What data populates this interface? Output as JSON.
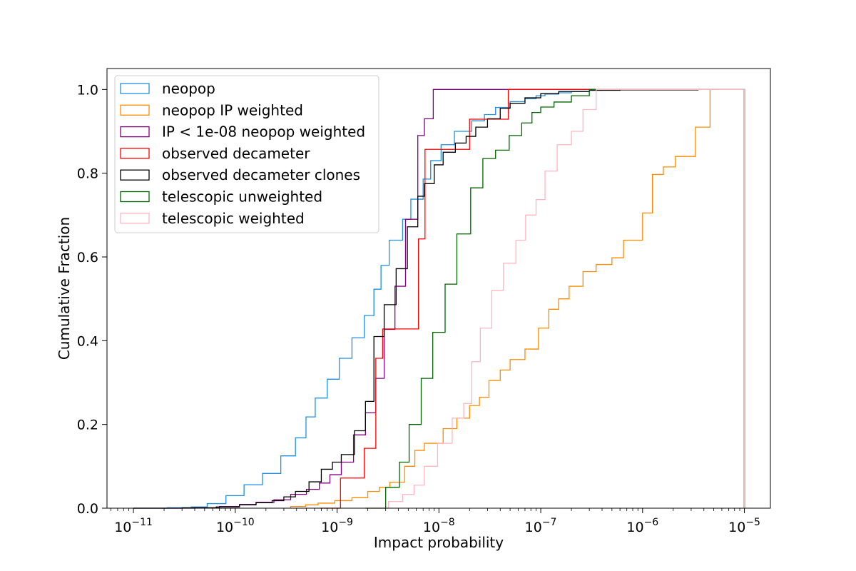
{
  "chart_data": {
    "type": "histogram-step",
    "xlabel": "Impact probability",
    "ylabel": "Cumulative Fraction",
    "xscale": "log",
    "xlim": [
      5.5e-12,
      1.8e-05
    ],
    "ylim": [
      0.0,
      1.05
    ],
    "grid": false,
    "legend_position": "upper-left",
    "x_ticks": [
      {
        "value": 1e-11,
        "base": "10",
        "exp": "−11"
      },
      {
        "value": 1e-10,
        "base": "10",
        "exp": "−10"
      },
      {
        "value": 1e-09,
        "base": "10",
        "exp": "−9"
      },
      {
        "value": 1e-08,
        "base": "10",
        "exp": "−8"
      },
      {
        "value": 1e-07,
        "base": "10",
        "exp": "−7"
      },
      {
        "value": 1e-06,
        "base": "10",
        "exp": "−6"
      },
      {
        "value": 1e-05,
        "base": "10",
        "exp": "−5"
      }
    ],
    "y_ticks": [
      "0.0",
      "0.2",
      "0.4",
      "0.6",
      "0.8",
      "1.0"
    ],
    "series": [
      {
        "name": "neopop",
        "color": "#1f8fe0",
        "x": [
          1e-11,
          2.15e-11,
          3.7e-11,
          5.3e-11,
          8.1e-11,
          1.22e-10,
          1.85e-10,
          2.8e-10,
          3.9e-10,
          4.95e-10,
          6.1e-10,
          8e-10,
          1.05e-09,
          1.4e-09,
          1.85e-09,
          2.3e-09,
          2.7e-09,
          3.25e-09,
          4.4e-09,
          5.3e-09,
          7e-09,
          8.3e-09,
          1.05e-08,
          1.42e-08,
          2.1e-08,
          2.8e-08,
          3.6e-08,
          5e-08,
          7e-08,
          9e-08,
          1.1e-07,
          1.5e-07,
          2e-07,
          3e-07,
          4e-07,
          1e-05
        ],
        "y": [
          0.0,
          0.001,
          0.003,
          0.011,
          0.03,
          0.056,
          0.083,
          0.125,
          0.168,
          0.218,
          0.263,
          0.308,
          0.358,
          0.407,
          0.46,
          0.523,
          0.58,
          0.64,
          0.69,
          0.738,
          0.786,
          0.83,
          0.868,
          0.9,
          0.925,
          0.94,
          0.957,
          0.971,
          0.978,
          0.985,
          0.989,
          0.992,
          0.995,
          0.998,
          1.0,
          1.0
        ]
      },
      {
        "name": "neopop IP weighted",
        "color": "#ff8c00",
        "x": [
          3.5e-10,
          4.9e-10,
          6.5e-10,
          9.5e-10,
          1.4e-09,
          2e-09,
          2.6e-09,
          3.3e-09,
          4.6e-09,
          5.8e-09,
          7.2e-09,
          1.1e-08,
          1.5e-08,
          2e-08,
          2.5e-08,
          3.1e-08,
          4e-08,
          5e-08,
          7e-08,
          9.5e-08,
          1.2e-07,
          1.5e-07,
          1.9e-07,
          2.6e-07,
          3.5e-07,
          5e-07,
          6.5e-07,
          1e-06,
          1.25e-06,
          1.6e-06,
          2.1e-06,
          3.3e-06,
          4.6e-06,
          1e-05
        ],
        "y": [
          0.004,
          0.008,
          0.012,
          0.018,
          0.025,
          0.04,
          0.05,
          0.062,
          0.1,
          0.138,
          0.155,
          0.19,
          0.215,
          0.245,
          0.265,
          0.305,
          0.33,
          0.355,
          0.38,
          0.43,
          0.475,
          0.5,
          0.53,
          0.565,
          0.582,
          0.598,
          0.64,
          0.705,
          0.797,
          0.815,
          0.84,
          0.91,
          1.0,
          1.0
        ]
      },
      {
        "name": "IP < 1e-08 neopop weighted",
        "color": "#800080",
        "x": [
          1e-11,
          4e-11,
          7e-11,
          1.1e-10,
          1.6e-10,
          2.4e-10,
          3.5e-10,
          5e-10,
          6.7e-10,
          8.5e-10,
          1.1e-09,
          1.45e-09,
          1.9e-09,
          2.4e-09,
          2.9e-09,
          3.7e-09,
          4.7e-09,
          6.2e-09,
          7.2e-09,
          8.8e-09,
          1e-05
        ],
        "y": [
          0.0,
          0.001,
          0.004,
          0.009,
          0.014,
          0.02,
          0.033,
          0.045,
          0.06,
          0.08,
          0.11,
          0.175,
          0.228,
          0.31,
          0.427,
          0.53,
          0.69,
          0.89,
          0.93,
          1.0,
          1.0
        ]
      },
      {
        "name": "observed decameter",
        "color": "#ff0000",
        "x": [
          6.8e-10,
          1.08e-09,
          1.85e-09,
          2.4e-09,
          2.8e-09,
          4.8e-09,
          6.3e-09,
          7.3e-09,
          1e-08,
          2e-08,
          3e-08,
          4.8e-08,
          1e-05
        ],
        "y": [
          0.0,
          0.072,
          0.143,
          0.358,
          0.428,
          0.428,
          0.643,
          0.857,
          0.857,
          0.929,
          0.929,
          1.0,
          1.0
        ]
      },
      {
        "name": "observed decameter clones",
        "color": "#000000",
        "x": [
          1e-11,
          3e-11,
          6.5e-11,
          1.1e-10,
          1.6e-10,
          2.3e-10,
          3e-10,
          3.9e-10,
          5.3e-10,
          7e-10,
          9e-10,
          1.1e-09,
          1.48e-09,
          1.9e-09,
          2.3e-09,
          2.9e-09,
          3.8e-09,
          4.9e-09,
          6.2e-09,
          7.2e-09,
          9e-09,
          1.1e-08,
          1.45e-08,
          1.85e-08,
          2.3e-08,
          3e-08,
          4e-08,
          5e-08,
          7e-08,
          1e-07,
          1.5e-07,
          3e-07,
          6e-07,
          3.5e-06,
          1e-05
        ],
        "y": [
          0.0,
          0.001,
          0.003,
          0.008,
          0.013,
          0.018,
          0.027,
          0.04,
          0.063,
          0.093,
          0.11,
          0.128,
          0.185,
          0.255,
          0.41,
          0.486,
          0.572,
          0.672,
          0.745,
          0.775,
          0.82,
          0.85,
          0.872,
          0.888,
          0.91,
          0.93,
          0.955,
          0.967,
          0.98,
          0.99,
          0.995,
          0.998,
          0.999,
          1.0,
          1.0
        ]
      },
      {
        "name": "telescopic unweighted",
        "color": "#006400",
        "x": [
          1.9e-09,
          3e-09,
          4.1e-09,
          5.1e-09,
          6.7e-09,
          8.7e-09,
          1.15e-08,
          1.5e-08,
          2.05e-08,
          2.7e-08,
          3.6e-08,
          4.9e-08,
          6.5e-08,
          8.2e-08,
          1e-07,
          1.35e-07,
          2e-07,
          3e-07,
          1e-05
        ],
        "y": [
          0.0,
          0.05,
          0.11,
          0.2,
          0.31,
          0.42,
          0.535,
          0.655,
          0.765,
          0.835,
          0.855,
          0.89,
          0.92,
          0.945,
          0.958,
          0.97,
          0.985,
          1.0,
          1.0
        ]
      },
      {
        "name": "telescopic weighted",
        "color": "#ffb6c1",
        "x": [
          2.2e-09,
          3.2e-09,
          4.4e-09,
          5.7e-09,
          7.2e-09,
          9.7e-09,
          1.35e-08,
          1.75e-08,
          2.1e-08,
          2.55e-08,
          3.3e-08,
          4.3e-08,
          5.7e-08,
          7.1e-08,
          9e-08,
          1.1e-07,
          1.45e-07,
          2e-07,
          2.6e-07,
          3.5e-07,
          1e-05
        ],
        "y": [
          0.0,
          0.016,
          0.033,
          0.055,
          0.1,
          0.155,
          0.215,
          0.25,
          0.35,
          0.43,
          0.52,
          0.585,
          0.64,
          0.7,
          0.737,
          0.805,
          0.868,
          0.9,
          0.952,
          1.0,
          1.0
        ]
      }
    ]
  }
}
